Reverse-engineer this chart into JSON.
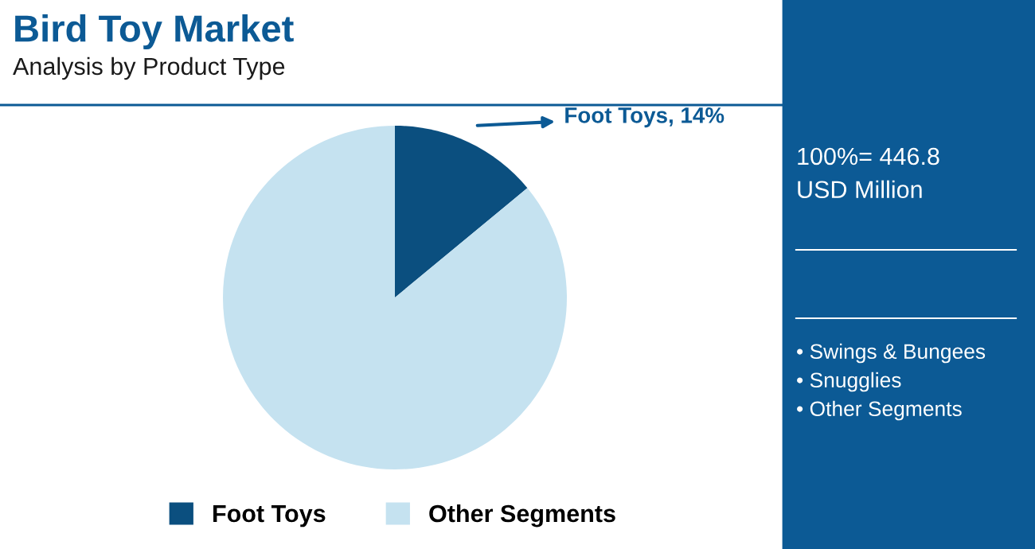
{
  "chart_data": {
    "type": "pie",
    "title": "Bird Toy Market",
    "subtitle": "Analysis by Product Type",
    "categories": [
      "Foot Toys",
      "Other Segments"
    ],
    "values": [
      14,
      86
    ],
    "colors": [
      "#0b4f7f",
      "#c5e2f0"
    ],
    "value_labels": [
      "Foot Toys, 14%",
      null
    ],
    "legend": "bottom",
    "annotations": [
      "100%= 446.8\nUSD Million",
      "• Swings & Bungees",
      "• Snugglies",
      "• Other Segments"
    ]
  }
}
